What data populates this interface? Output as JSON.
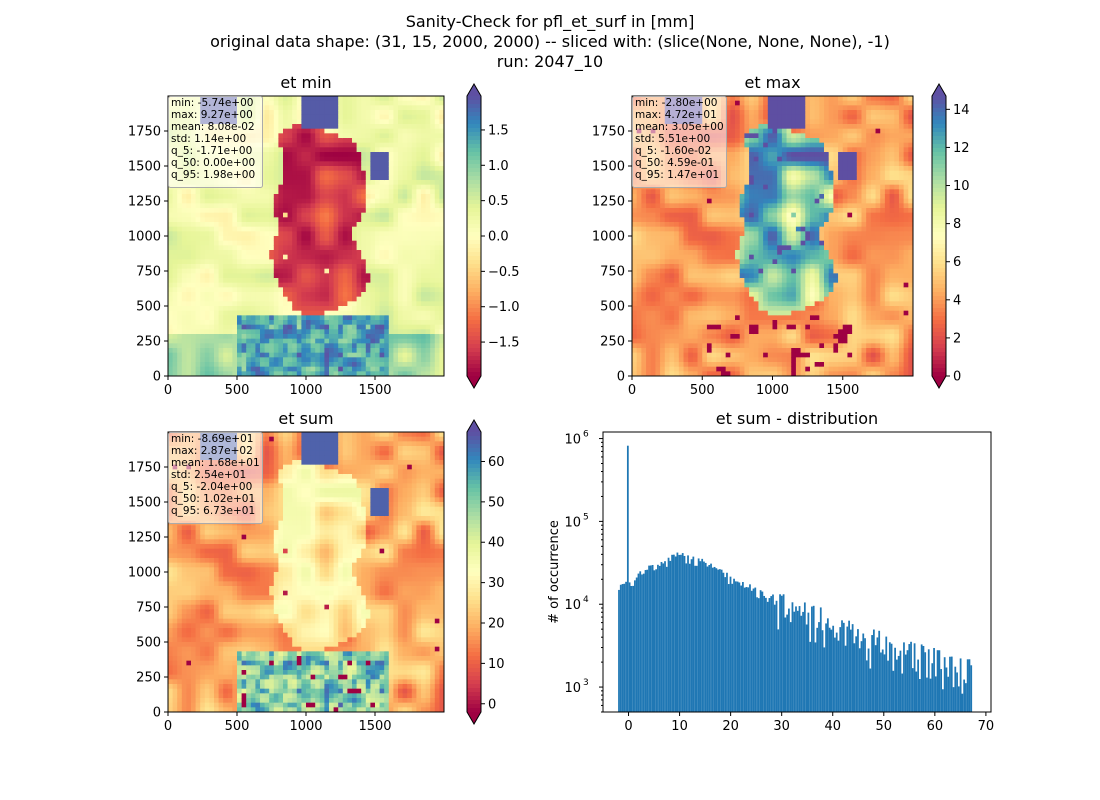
{
  "figure": {
    "title_lines": [
      "Sanity-Check for pfl_et_surf in [mm]",
      "original data shape: (31, 15, 2000, 2000) -- sliced with: (slice(None, None, None), -1)",
      "run: 2047_10"
    ]
  },
  "chart_data": [
    {
      "type": "heatmap",
      "title": "et min",
      "xlim": [
        0,
        2000
      ],
      "ylim": [
        0,
        2000
      ],
      "x_ticks": [
        0,
        500,
        1000,
        1500
      ],
      "y_ticks": [
        0,
        250,
        500,
        750,
        1000,
        1250,
        1500,
        1750
      ],
      "colorbar": {
        "cmap": "Spectral",
        "vmin": -1.98,
        "vmax": 1.98,
        "ticks": [
          -1.5,
          -1.0,
          -0.5,
          0.0,
          0.5,
          1.0,
          1.5
        ],
        "tick_labels": [
          "−1.5",
          "−1.0",
          "−0.5",
          "0.0",
          "0.5",
          "1.0",
          "1.5"
        ],
        "extend": "both"
      },
      "stats": [
        "min: -5.74e+00",
        "max: 9.27e+00",
        "mean: 8.08e-02",
        "std: 1.14e+00",
        "q_5: -1.71e+00",
        "q_50: 0.00e+00",
        "q_95: 1.98e+00"
      ],
      "field": "min"
    },
    {
      "type": "heatmap",
      "title": "et max",
      "xlim": [
        0,
        2000
      ],
      "ylim": [
        0,
        2000
      ],
      "x_ticks": [
        0,
        500,
        1000,
        1500
      ],
      "y_ticks": [
        0,
        250,
        500,
        750,
        1000,
        1250,
        1500,
        1750
      ],
      "colorbar": {
        "cmap": "Spectral",
        "vmin": 0,
        "vmax": 14.7,
        "ticks": [
          0,
          2,
          4,
          6,
          8,
          10,
          12,
          14
        ],
        "tick_labels": [
          "0",
          "2",
          "4",
          "6",
          "8",
          "10",
          "12",
          "14"
        ],
        "extend": "both"
      },
      "stats": [
        "min: -2.80e+00",
        "max: 4.72e+01",
        "mean: 3.05e+00",
        "std: 5.51e+00",
        "q_5: -1.60e-02",
        "q_50: 4.59e-01",
        "q_95: 1.47e+01"
      ],
      "field": "max"
    },
    {
      "type": "heatmap",
      "title": "et sum",
      "xlim": [
        0,
        2000
      ],
      "ylim": [
        0,
        2000
      ],
      "x_ticks": [
        0,
        500,
        1000,
        1500
      ],
      "y_ticks": [
        0,
        250,
        500,
        750,
        1000,
        1250,
        1500,
        1750
      ],
      "colorbar": {
        "cmap": "Spectral",
        "vmin": -2.04,
        "vmax": 67.3,
        "ticks": [
          0,
          10,
          20,
          30,
          40,
          50,
          60
        ],
        "tick_labels": [
          "0",
          "10",
          "20",
          "30",
          "40",
          "50",
          "60"
        ],
        "extend": "both"
      },
      "stats": [
        "min: -8.69e+01",
        "max: 2.87e+02",
        "mean: 1.68e+01",
        "std: 2.54e+01",
        "q_5: -2.04e+00",
        "q_50: 1.02e+01",
        "q_95: 6.73e+01"
      ],
      "field": "sum"
    },
    {
      "type": "bar",
      "title": "et sum - distribution",
      "xlabel": "",
      "ylabel": "# of occurrence",
      "y_scale": "log",
      "xlim": [
        -5,
        71
      ],
      "ylim": [
        500,
        1200000
      ],
      "x_ticks": [
        0,
        10,
        20,
        30,
        40,
        50,
        60,
        70
      ],
      "y_ticks": [
        1000,
        10000,
        100000,
        1000000
      ],
      "y_tick_labels": [
        [
          "10",
          "3"
        ],
        [
          "10",
          "4"
        ],
        [
          "10",
          "5"
        ],
        [
          "10",
          "6"
        ]
      ],
      "color": "#1f77b4",
      "bin_range": [
        -2.04,
        67.3
      ],
      "spike": {
        "x": 0,
        "value": 820000
      },
      "envelope": [
        {
          "x": -2,
          "y": 15000
        },
        {
          "x": 0,
          "y": 18000
        },
        {
          "x": 5,
          "y": 28000
        },
        {
          "x": 10,
          "y": 38000
        },
        {
          "x": 15,
          "y": 30000
        },
        {
          "x": 20,
          "y": 20000
        },
        {
          "x": 25,
          "y": 14000
        },
        {
          "x": 30,
          "y": 10000
        },
        {
          "x": 35,
          "y": 7000
        },
        {
          "x": 40,
          "y": 5200
        },
        {
          "x": 45,
          "y": 3800
        },
        {
          "x": 50,
          "y": 3000
        },
        {
          "x": 55,
          "y": 2400
        },
        {
          "x": 60,
          "y": 1900
        },
        {
          "x": 65,
          "y": 1600
        },
        {
          "x": 67.3,
          "y": 1500
        }
      ]
    }
  ]
}
